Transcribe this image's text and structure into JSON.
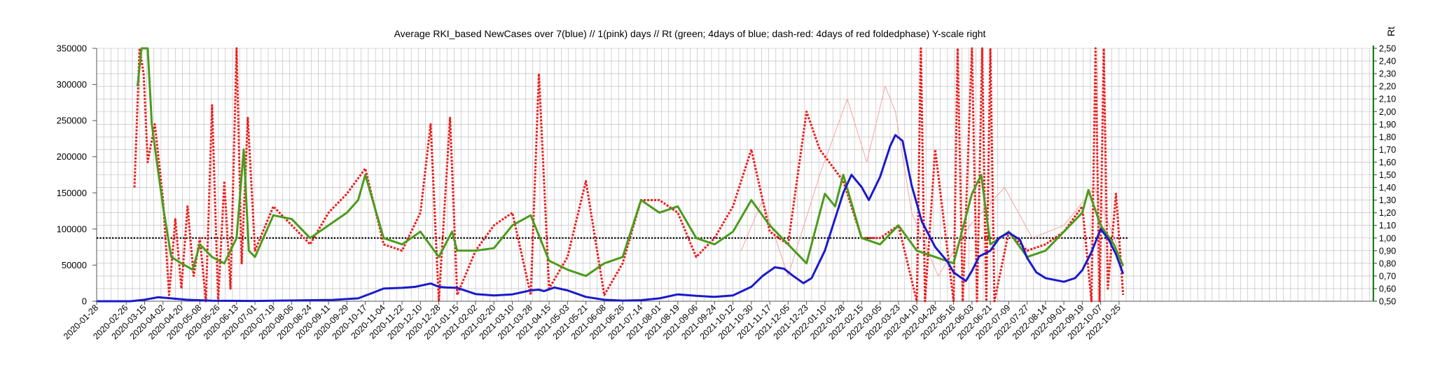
{
  "chart_data": {
    "type": "line",
    "title": "Average RKI_based NewCases over 7(blue) // 1(pink) days //  Rt (green; 4days of blue; dash-red: 4days of red foldedphase) Y-scale right",
    "ylabel_right": "Rt",
    "ylim_left": [
      0,
      350000
    ],
    "ylim_right": [
      0.5,
      2.5
    ],
    "yticks_left": [
      "350000",
      "300000",
      "250000",
      "200000",
      "150000",
      "100000",
      "50000",
      "0"
    ],
    "yticks_right": [
      "2,50",
      "2,40",
      "2,30",
      "2,20",
      "2,10",
      "2,00",
      "1,90",
      "1,80",
      "1,70",
      "1,60",
      "1,50",
      "1,40",
      "1,30",
      "1,20",
      "1,10",
      "1,00",
      "0,90",
      "0,80",
      "0,70",
      "0,60",
      "0,50"
    ],
    "x_start": "2020-01-28",
    "x_end": "2023-07-01",
    "xticks": [
      "2020-01-28",
      "2020-02-26",
      "2020-03-15",
      "2020-04-02",
      "2020-04-20",
      "2020-05-08",
      "2020-05-26",
      "2020-06-13",
      "2020-07-01",
      "2020-07-19",
      "2020-08-06",
      "2020-08-24",
      "2020-09-11",
      "2020-09-29",
      "2020-10-17",
      "2020-11-04",
      "2020-11-22",
      "2020-12-10",
      "2020-12-28",
      "2021-01-15",
      "2021-02-02",
      "2021-02-20",
      "2021-03-10",
      "2021-03-28",
      "2021-04-15",
      "2021-05-03",
      "2021-05-21",
      "2021-06-08",
      "2021-06-26",
      "2021-07-14",
      "2021-08-01",
      "2021-08-19",
      "2021-09-06",
      "2021-09-24",
      "2021-10-12",
      "2021-10-30",
      "2021-11-17",
      "2021-12-05",
      "2021-12-23",
      "2022-01-10",
      "2022-01-28",
      "2022-02-15",
      "2022-03-05",
      "2022-03-23",
      "2022-04-10",
      "2022-04-28",
      "2022-05-16",
      "2022-06-03",
      "2022-06-21",
      "2022-07-09",
      "2022-07-27",
      "2022-08-14",
      "2022-09-01",
      "2022-09-19",
      "2022-10-07",
      "2022-10-25"
    ],
    "reference_line": {
      "axis": "right",
      "value": 1.0,
      "style": "dotted",
      "color": "#000000"
    },
    "grid": true,
    "series": [
      {
        "axis": "left",
        "color": "#1a1acc",
        "style": "solid",
        "points": [
          [
            "2020-01-28",
            0
          ],
          [
            "2020-03-01",
            0
          ],
          [
            "2020-03-15",
            2000
          ],
          [
            "2020-03-28",
            5500
          ],
          [
            "2020-04-10",
            4000
          ],
          [
            "2020-04-25",
            2000
          ],
          [
            "2020-05-20",
            800
          ],
          [
            "2020-07-01",
            400
          ],
          [
            "2020-08-15",
            1200
          ],
          [
            "2020-09-15",
            1800
          ],
          [
            "2020-10-10",
            4000
          ],
          [
            "2020-10-25",
            12000
          ],
          [
            "2020-11-04",
            17500
          ],
          [
            "2020-11-22",
            18500
          ],
          [
            "2020-12-05",
            20000
          ],
          [
            "2020-12-20",
            24500
          ],
          [
            "2020-12-28",
            20000
          ],
          [
            "2021-01-05",
            19000
          ],
          [
            "2021-01-15",
            18500
          ],
          [
            "2021-02-02",
            10000
          ],
          [
            "2021-02-20",
            8000
          ],
          [
            "2021-03-10",
            9500
          ],
          [
            "2021-03-28",
            15000
          ],
          [
            "2021-04-05",
            16000
          ],
          [
            "2021-04-10",
            14000
          ],
          [
            "2021-04-20",
            19000
          ],
          [
            "2021-05-03",
            15000
          ],
          [
            "2021-05-21",
            6000
          ],
          [
            "2021-06-08",
            2000
          ],
          [
            "2021-06-26",
            900
          ],
          [
            "2021-07-14",
            1500
          ],
          [
            "2021-08-01",
            4000
          ],
          [
            "2021-08-19",
            9500
          ],
          [
            "2021-09-06",
            7500
          ],
          [
            "2021-09-24",
            6000
          ],
          [
            "2021-10-12",
            8000
          ],
          [
            "2021-10-30",
            20000
          ],
          [
            "2021-11-10",
            35000
          ],
          [
            "2021-11-22",
            47000
          ],
          [
            "2021-12-01",
            45000
          ],
          [
            "2021-12-10",
            35000
          ],
          [
            "2021-12-20",
            25000
          ],
          [
            "2021-12-28",
            32000
          ],
          [
            "2022-01-10",
            70000
          ],
          [
            "2022-01-28",
            150000
          ],
          [
            "2022-02-05",
            175000
          ],
          [
            "2022-02-15",
            158000
          ],
          [
            "2022-02-22",
            140000
          ],
          [
            "2022-03-05",
            172000
          ],
          [
            "2022-03-15",
            215000
          ],
          [
            "2022-03-20",
            230000
          ],
          [
            "2022-03-27",
            222000
          ],
          [
            "2022-04-05",
            160000
          ],
          [
            "2022-04-15",
            110000
          ],
          [
            "2022-04-28",
            75000
          ],
          [
            "2022-05-10",
            55000
          ],
          [
            "2022-05-16",
            40000
          ],
          [
            "2022-05-28",
            28000
          ],
          [
            "2022-06-03",
            42000
          ],
          [
            "2022-06-10",
            62000
          ],
          [
            "2022-06-21",
            70000
          ],
          [
            "2022-06-30",
            88000
          ],
          [
            "2022-07-09",
            95000
          ],
          [
            "2022-07-20",
            85000
          ],
          [
            "2022-07-27",
            60000
          ],
          [
            "2022-08-05",
            40000
          ],
          [
            "2022-08-14",
            32000
          ],
          [
            "2022-09-01",
            27000
          ],
          [
            "2022-09-12",
            32000
          ],
          [
            "2022-09-19",
            43000
          ],
          [
            "2022-09-28",
            68000
          ],
          [
            "2022-10-07",
            100000
          ],
          [
            "2022-10-15",
            85000
          ],
          [
            "2022-10-22",
            65000
          ],
          [
            "2022-10-29",
            38000
          ]
        ]
      },
      {
        "axis": "right",
        "color": "#4b9b1c",
        "style": "solid",
        "points": [
          [
            "2020-03-08",
            2.2
          ],
          [
            "2020-03-12",
            2.5
          ],
          [
            "2020-03-18",
            2.5
          ],
          [
            "2020-03-22",
            1.9
          ],
          [
            "2020-03-27",
            1.6
          ],
          [
            "2020-04-02",
            1.25
          ],
          [
            "2020-04-10",
            0.85
          ],
          [
            "2020-04-20",
            0.8
          ],
          [
            "2020-05-01",
            0.75
          ],
          [
            "2020-05-08",
            0.95
          ],
          [
            "2020-05-20",
            0.85
          ],
          [
            "2020-06-01",
            0.8
          ],
          [
            "2020-06-13",
            1.0
          ],
          [
            "2020-06-20",
            1.7
          ],
          [
            "2020-06-25",
            0.9
          ],
          [
            "2020-07-01",
            0.85
          ],
          [
            "2020-07-19",
            1.18
          ],
          [
            "2020-08-06",
            1.15
          ],
          [
            "2020-08-24",
            1.0
          ],
          [
            "2020-09-11",
            1.1
          ],
          [
            "2020-09-29",
            1.2
          ],
          [
            "2020-10-10",
            1.3
          ],
          [
            "2020-10-17",
            1.5
          ],
          [
            "2020-11-04",
            1.0
          ],
          [
            "2020-11-22",
            0.95
          ],
          [
            "2020-12-10",
            1.05
          ],
          [
            "2020-12-28",
            0.85
          ],
          [
            "2021-01-10",
            1.05
          ],
          [
            "2021-01-15",
            0.9
          ],
          [
            "2021-02-02",
            0.9
          ],
          [
            "2021-02-20",
            0.92
          ],
          [
            "2021-03-10",
            1.1
          ],
          [
            "2021-03-28",
            1.18
          ],
          [
            "2021-04-15",
            0.82
          ],
          [
            "2021-05-03",
            0.75
          ],
          [
            "2021-05-21",
            0.7
          ],
          [
            "2021-06-08",
            0.8
          ],
          [
            "2021-06-26",
            0.85
          ],
          [
            "2021-07-14",
            1.3
          ],
          [
            "2021-08-01",
            1.2
          ],
          [
            "2021-08-19",
            1.25
          ],
          [
            "2021-09-06",
            1.0
          ],
          [
            "2021-09-24",
            0.95
          ],
          [
            "2021-10-12",
            1.05
          ],
          [
            "2021-10-30",
            1.3
          ],
          [
            "2021-11-17",
            1.1
          ],
          [
            "2021-12-05",
            0.95
          ],
          [
            "2021-12-23",
            0.8
          ],
          [
            "2022-01-10",
            1.35
          ],
          [
            "2022-01-20",
            1.25
          ],
          [
            "2022-01-28",
            1.5
          ],
          [
            "2022-02-15",
            1.0
          ],
          [
            "2022-03-05",
            0.95
          ],
          [
            "2022-03-23",
            1.1
          ],
          [
            "2022-04-10",
            0.9
          ],
          [
            "2022-04-28",
            0.85
          ],
          [
            "2022-05-16",
            0.8
          ],
          [
            "2022-06-03",
            1.35
          ],
          [
            "2022-06-12",
            1.5
          ],
          [
            "2022-06-21",
            0.95
          ],
          [
            "2022-07-09",
            1.05
          ],
          [
            "2022-07-27",
            0.85
          ],
          [
            "2022-08-14",
            0.9
          ],
          [
            "2022-09-01",
            1.05
          ],
          [
            "2022-09-19",
            1.2
          ],
          [
            "2022-09-25",
            1.38
          ],
          [
            "2022-10-07",
            1.1
          ],
          [
            "2022-10-20",
            0.95
          ],
          [
            "2022-10-29",
            0.78
          ]
        ]
      },
      {
        "axis": "right",
        "color": "#ee1c1c",
        "style": "dashed",
        "points": [
          [
            "2020-03-05",
            1.4
          ],
          [
            "2020-03-10",
            2.5
          ],
          [
            "2020-03-14",
            2.3
          ],
          [
            "2020-03-18",
            1.6
          ],
          [
            "2020-03-25",
            1.9
          ],
          [
            "2020-04-02",
            1.3
          ],
          [
            "2020-04-08",
            0.55
          ],
          [
            "2020-04-14",
            1.15
          ],
          [
            "2020-04-20",
            0.6
          ],
          [
            "2020-04-26",
            1.25
          ],
          [
            "2020-05-02",
            0.7
          ],
          [
            "2020-05-08",
            1.0
          ],
          [
            "2020-05-14",
            0.5
          ],
          [
            "2020-05-20",
            2.05
          ],
          [
            "2020-05-26",
            0.5
          ],
          [
            "2020-06-01",
            1.45
          ],
          [
            "2020-06-07",
            0.6
          ],
          [
            "2020-06-13",
            2.5
          ],
          [
            "2020-06-18",
            0.8
          ],
          [
            "2020-06-24",
            1.95
          ],
          [
            "2020-07-01",
            0.9
          ],
          [
            "2020-07-19",
            1.25
          ],
          [
            "2020-08-06",
            1.1
          ],
          [
            "2020-08-24",
            0.95
          ],
          [
            "2020-09-11",
            1.2
          ],
          [
            "2020-09-29",
            1.35
          ],
          [
            "2020-10-17",
            1.55
          ],
          [
            "2020-11-04",
            0.95
          ],
          [
            "2020-11-22",
            0.9
          ],
          [
            "2020-12-10",
            1.2
          ],
          [
            "2020-12-20",
            1.9
          ],
          [
            "2020-12-28",
            0.5
          ],
          [
            "2021-01-08",
            1.95
          ],
          [
            "2021-01-15",
            0.55
          ],
          [
            "2021-02-02",
            0.9
          ],
          [
            "2021-02-20",
            1.1
          ],
          [
            "2021-03-10",
            1.2
          ],
          [
            "2021-03-28",
            0.55
          ],
          [
            "2021-04-05",
            2.3
          ],
          [
            "2021-04-15",
            0.6
          ],
          [
            "2021-05-03",
            0.85
          ],
          [
            "2021-05-21",
            1.45
          ],
          [
            "2021-06-08",
            0.55
          ],
          [
            "2021-06-26",
            0.8
          ],
          [
            "2021-07-14",
            1.3
          ],
          [
            "2021-08-01",
            1.3
          ],
          [
            "2021-08-19",
            1.2
          ],
          [
            "2021-09-06",
            0.85
          ],
          [
            "2021-09-24",
            1.0
          ],
          [
            "2021-10-12",
            1.25
          ],
          [
            "2021-10-30",
            1.7
          ],
          [
            "2021-11-17",
            1.05
          ],
          [
            "2021-12-05",
            0.95
          ],
          [
            "2021-12-23",
            2.0
          ],
          [
            "2022-01-05",
            1.7
          ],
          [
            "2022-01-28",
            1.45
          ],
          [
            "2022-02-15",
            1.0
          ],
          [
            "2022-03-05",
            1.0
          ],
          [
            "2022-03-23",
            1.1
          ],
          [
            "2022-04-10",
            0.5
          ],
          [
            "2022-04-14",
            2.5
          ],
          [
            "2022-04-18",
            0.5
          ],
          [
            "2022-04-28",
            1.7
          ],
          [
            "2022-05-16",
            0.5
          ],
          [
            "2022-05-20",
            2.5
          ],
          [
            "2022-05-25",
            0.5
          ],
          [
            "2022-06-03",
            2.5
          ],
          [
            "2022-06-08",
            0.5
          ],
          [
            "2022-06-13",
            2.5
          ],
          [
            "2022-06-17",
            0.5
          ],
          [
            "2022-06-21",
            2.5
          ],
          [
            "2022-06-25",
            0.5
          ],
          [
            "2022-07-09",
            1.05
          ],
          [
            "2022-07-27",
            0.9
          ],
          [
            "2022-08-14",
            0.95
          ],
          [
            "2022-09-01",
            1.05
          ],
          [
            "2022-09-19",
            1.25
          ],
          [
            "2022-09-28",
            0.5
          ],
          [
            "2022-10-02",
            2.5
          ],
          [
            "2022-10-06",
            0.5
          ],
          [
            "2022-10-10",
            2.5
          ],
          [
            "2022-10-14",
            0.6
          ],
          [
            "2022-10-22",
            1.35
          ],
          [
            "2022-10-29",
            0.55
          ]
        ]
      },
      {
        "axis": "right",
        "color": "#f6a3a3",
        "style": "thin",
        "points": [
          [
            "2021-10-20",
            0.9
          ],
          [
            "2021-11-10",
            1.3
          ],
          [
            "2021-12-05",
            0.7
          ],
          [
            "2022-01-05",
            1.5
          ],
          [
            "2022-02-01",
            2.1
          ],
          [
            "2022-02-20",
            1.6
          ],
          [
            "2022-03-10",
            2.2
          ],
          [
            "2022-03-20",
            2.0
          ],
          [
            "2022-04-05",
            1.2
          ],
          [
            "2022-05-01",
            0.7
          ],
          [
            "2022-06-01",
            1.1
          ],
          [
            "2022-07-05",
            1.4
          ],
          [
            "2022-08-01",
            1.0
          ],
          [
            "2022-09-01",
            1.1
          ],
          [
            "2022-10-01",
            1.4
          ],
          [
            "2022-10-25",
            0.9
          ]
        ]
      }
    ]
  }
}
